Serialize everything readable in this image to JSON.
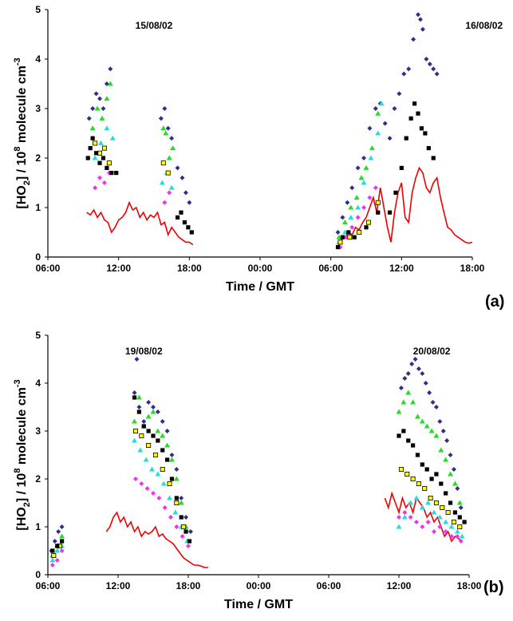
{
  "panels": [
    {
      "tag": "(a)",
      "xlabel": "Time / GMT",
      "ylabel_main": "[HO",
      "ylabel_sub": "2",
      "ylabel_mid": "] / 10",
      "ylabel_sup": "8",
      "ylabel_rest": " molecule cm",
      "ylabel_sup2": "-3",
      "dates": [
        {
          "text": "15/08/02",
          "x": 15
        },
        {
          "text": "16/08/02",
          "x": 43
        }
      ]
    },
    {
      "tag": "(b)",
      "xlabel": "Time / GMT",
      "ylabel_main": "[HO",
      "ylabel_sub": "2",
      "ylabel_mid": "] / 10",
      "ylabel_sup": "8",
      "ylabel_rest": " molecule cm",
      "ylabel_sup2": "-3",
      "dates": [
        {
          "text": "19/08/02",
          "x": 14.2
        },
        {
          "text": "20/08/02",
          "x": 38.8
        }
      ]
    }
  ],
  "chart_data": [
    {
      "type": "scatter",
      "title": "",
      "xlabel": "Time / GMT",
      "ylabel": "[HO2] / 10^8 molecule cm^-3",
      "xlim": [
        6,
        42
      ],
      "ylim": [
        0,
        5
      ],
      "x_ticks": [
        "06:00",
        "12:00",
        "18:00",
        "00:00",
        "06:00",
        "12:00",
        "18:00"
      ],
      "y_ticks": [
        "0",
        "1",
        "2",
        "3",
        "4",
        "5"
      ],
      "annotations": [
        "15/08/02",
        "16/08/02"
      ],
      "colors": {
        "blue": "#2e2e8c",
        "green": "#22dd22",
        "cyan": "#22dddd",
        "magenta": "#ee33ee",
        "yellow": "#ffff00",
        "black": "#000000",
        "red": "#ee0000"
      },
      "series": [
        {
          "color": "blue",
          "marker": "diamond",
          "x": [
            9.5,
            9.8,
            10.1,
            10.4,
            10.7,
            11.0,
            11.3,
            15.6,
            15.9,
            16.2,
            16.5,
            17.0,
            17.4,
            17.7,
            18.0,
            30.6,
            31.0,
            31.4,
            31.8,
            32.3,
            32.8,
            33.3,
            33.8,
            34.2,
            34.6,
            35.0,
            35.4,
            35.8,
            36.2,
            36.6,
            37.0,
            37.4,
            37.6,
            37.8,
            38.1,
            38.4,
            38.7,
            39.0
          ],
          "y": [
            2.8,
            3.0,
            3.3,
            3.2,
            3.0,
            3.5,
            3.8,
            2.8,
            3.0,
            2.6,
            2.4,
            1.8,
            1.6,
            1.3,
            1.1,
            0.5,
            0.8,
            1.1,
            1.4,
            1.8,
            2.0,
            2.6,
            3.0,
            3.1,
            2.7,
            2.4,
            3.0,
            3.3,
            3.7,
            3.8,
            4.4,
            4.9,
            4.8,
            4.6,
            4.0,
            3.9,
            3.8,
            3.7
          ]
        },
        {
          "color": "green",
          "marker": "triangle",
          "x": [
            9.8,
            10.2,
            10.6,
            11.0,
            11.3,
            15.8,
            16.0,
            16.3,
            16.6,
            30.7,
            31.2,
            31.7,
            32.2,
            32.6,
            33.0,
            33.5,
            34.0
          ],
          "y": [
            2.6,
            3.0,
            2.8,
            3.2,
            3.5,
            2.6,
            2.5,
            2.0,
            2.2,
            0.4,
            0.7,
            1.0,
            1.2,
            1.6,
            1.8,
            2.2,
            2.9
          ]
        },
        {
          "color": "cyan",
          "marker": "triangle",
          "x": [
            10.0,
            10.5,
            11.0,
            11.5,
            15.7,
            16.1,
            16.5,
            30.7,
            31.2,
            31.7,
            32.3,
            32.8,
            33.4,
            34.0,
            34.3
          ],
          "y": [
            2.0,
            2.3,
            2.6,
            2.4,
            1.5,
            1.7,
            1.4,
            0.3,
            0.5,
            0.8,
            1.0,
            1.5,
            2.0,
            2.5,
            3.1
          ]
        },
        {
          "color": "magenta",
          "marker": "diamond",
          "x": [
            10.0,
            10.4,
            10.8,
            11.2,
            15.9,
            16.3,
            30.8,
            31.3,
            31.8,
            32.3,
            32.8,
            33.3,
            33.8
          ],
          "y": [
            1.4,
            1.6,
            1.5,
            1.7,
            1.1,
            1.3,
            0.2,
            0.4,
            0.6,
            0.8,
            1.0,
            1.2,
            1.4
          ]
        },
        {
          "color": "yellow",
          "marker": "square",
          "x": [
            10.0,
            10.4,
            10.8,
            11.2,
            15.8,
            16.2,
            30.8,
            31.6,
            32.4,
            33.2,
            34.0
          ],
          "y": [
            2.3,
            2.1,
            2.2,
            1.9,
            1.9,
            1.7,
            0.3,
            0.4,
            0.5,
            0.7,
            1.1
          ]
        },
        {
          "color": "black",
          "marker": "square",
          "x": [
            9.4,
            9.6,
            9.8,
            10.1,
            10.4,
            10.7,
            11.0,
            11.4,
            11.8,
            17.0,
            17.3,
            17.6,
            17.9,
            18.2,
            30.6,
            31.0,
            31.5,
            32.0,
            33.0,
            34.0,
            35.0,
            35.5,
            36.0,
            36.4,
            36.8,
            37.1,
            37.4,
            37.7,
            38.0,
            38.3,
            38.7
          ],
          "y": [
            2.0,
            2.2,
            2.4,
            2.1,
            1.9,
            2.0,
            1.8,
            1.7,
            1.7,
            0.8,
            0.9,
            0.7,
            0.6,
            0.5,
            0.2,
            0.4,
            0.5,
            0.4,
            0.6,
            0.9,
            0.9,
            1.3,
            1.8,
            2.4,
            2.8,
            3.1,
            2.9,
            2.6,
            2.5,
            2.2,
            2.0
          ]
        }
      ],
      "line_series": [
        {
          "color": "red",
          "x": [
            9.3,
            9.6,
            9.9,
            10.2,
            10.5,
            10.8,
            11.1,
            11.4,
            11.7,
            12.0,
            12.3,
            12.6,
            12.9,
            13.2,
            13.5,
            13.8,
            14.1,
            14.4,
            14.7,
            15.0,
            15.3,
            15.6,
            15.9,
            16.2,
            16.5,
            16.8,
            17.1,
            17.4,
            17.7,
            18.0,
            18.3
          ],
          "y": [
            0.9,
            0.85,
            0.95,
            0.8,
            0.9,
            0.75,
            0.7,
            0.5,
            0.6,
            0.75,
            0.8,
            0.9,
            1.1,
            0.95,
            1.0,
            0.8,
            0.9,
            0.75,
            0.85,
            0.8,
            0.9,
            0.65,
            0.7,
            0.45,
            0.6,
            0.5,
            0.4,
            0.35,
            0.3,
            0.3,
            0.25
          ]
        },
        {
          "color": "red",
          "x": [
            30.6,
            30.9,
            31.2,
            31.5,
            31.8,
            32.1,
            32.4,
            32.7,
            33.0,
            33.3,
            33.6,
            33.9,
            34.2,
            34.5,
            34.8,
            35.1,
            35.4,
            35.7,
            36.0,
            36.3,
            36.6,
            36.9,
            37.2,
            37.5,
            37.8,
            38.1,
            38.4,
            38.7,
            39.0,
            39.3,
            39.6,
            39.9,
            40.2,
            40.5,
            40.8,
            41.1,
            41.4,
            41.7,
            42.0
          ],
          "y": [
            0.2,
            0.35,
            0.4,
            0.5,
            0.45,
            0.6,
            0.55,
            0.7,
            0.8,
            1.0,
            1.2,
            0.9,
            1.4,
            1.0,
            0.6,
            0.3,
            0.9,
            1.3,
            1.5,
            0.8,
            0.7,
            1.3,
            1.6,
            1.8,
            1.7,
            1.4,
            1.3,
            1.5,
            1.6,
            1.2,
            0.9,
            0.6,
            0.55,
            0.45,
            0.4,
            0.35,
            0.3,
            0.28,
            0.3
          ]
        }
      ]
    },
    {
      "type": "scatter",
      "title": "",
      "xlabel": "Time / GMT",
      "ylabel": "[HO2] / 10^8 molecule cm^-3",
      "xlim": [
        6,
        42
      ],
      "ylim": [
        0,
        5
      ],
      "x_ticks": [
        "06:00",
        "12:00",
        "18:00",
        "00:00",
        "06:00",
        "12:00",
        "18:00"
      ],
      "y_ticks": [
        "0",
        "1",
        "2",
        "3",
        "4",
        "5"
      ],
      "annotations": [
        "19/08/02",
        "20/08/02"
      ],
      "colors": {
        "blue": "#2e2e8c",
        "green": "#22dd22",
        "cyan": "#22dddd",
        "magenta": "#ee33ee",
        "yellow": "#ffff00",
        "black": "#000000",
        "red": "#ee0000"
      },
      "series": [
        {
          "color": "blue",
          "marker": "diamond",
          "x": [
            6.3,
            6.6,
            6.9,
            7.2,
            13.4,
            13.6,
            13.8,
            14.2,
            14.6,
            15.0,
            15.4,
            15.8,
            16.2,
            16.6,
            17.0,
            17.4,
            17.8,
            18.2,
            36.2,
            36.5,
            36.8,
            37.1,
            37.4,
            37.7,
            38.0,
            38.3,
            38.6,
            38.9,
            39.2,
            39.5,
            39.8,
            40.1,
            40.4,
            40.7,
            41.0,
            41.3
          ],
          "y": [
            0.5,
            0.7,
            0.9,
            1.0,
            3.8,
            4.5,
            3.5,
            3.2,
            3.6,
            3.5,
            3.4,
            3.2,
            3.0,
            2.5,
            2.2,
            1.6,
            1.2,
            0.9,
            3.9,
            4.1,
            4.2,
            4.4,
            4.5,
            4.3,
            4.2,
            4.0,
            3.8,
            3.6,
            3.5,
            3.2,
            3.0,
            2.8,
            2.5,
            2.2,
            1.8,
            1.4
          ]
        },
        {
          "color": "green",
          "marker": "triangle",
          "x": [
            6.4,
            6.8,
            7.2,
            13.4,
            13.8,
            14.2,
            14.6,
            15.0,
            15.4,
            15.8,
            16.2,
            16.6,
            17.0,
            17.4,
            17.8,
            36.0,
            36.4,
            36.8,
            37.2,
            37.6,
            38.0,
            38.4,
            38.8,
            39.2,
            39.6,
            40.0,
            40.4,
            40.8,
            41.2
          ],
          "y": [
            0.4,
            0.6,
            0.8,
            3.2,
            3.7,
            3.1,
            3.3,
            3.4,
            3.0,
            2.9,
            2.7,
            2.4,
            2.0,
            1.5,
            1.0,
            3.4,
            3.6,
            3.8,
            3.6,
            3.3,
            3.2,
            3.1,
            3.0,
            2.9,
            2.6,
            2.4,
            2.1,
            1.9,
            1.5
          ]
        },
        {
          "color": "cyan",
          "marker": "triangle",
          "x": [
            6.4,
            6.8,
            7.2,
            13.4,
            13.9,
            14.4,
            14.9,
            15.4,
            15.9,
            16.4,
            16.9,
            17.4,
            17.9,
            36.0,
            36.5,
            37.0,
            37.5,
            38.0,
            38.5,
            39.0,
            39.5,
            40.0,
            40.5,
            41.0,
            41.4
          ],
          "y": [
            0.3,
            0.5,
            0.6,
            2.8,
            2.6,
            2.4,
            2.2,
            2.1,
            1.9,
            1.6,
            1.3,
            1.0,
            0.7,
            1.0,
            1.2,
            1.5,
            1.6,
            1.4,
            1.5,
            1.3,
            1.2,
            1.1,
            1.0,
            0.9,
            0.8
          ]
        },
        {
          "color": "magenta",
          "marker": "diamond",
          "x": [
            6.4,
            6.8,
            7.2,
            13.5,
            14.0,
            14.5,
            15.0,
            15.5,
            16.0,
            16.5,
            17.0,
            17.5,
            18.0,
            36.0,
            36.5,
            37.0,
            37.5,
            38.0,
            38.5,
            39.0,
            39.5,
            40.0,
            40.5,
            41.0,
            41.3
          ],
          "y": [
            0.2,
            0.3,
            0.5,
            2.0,
            1.9,
            1.8,
            1.7,
            1.6,
            1.4,
            1.2,
            1.0,
            0.8,
            0.6,
            1.2,
            1.3,
            1.2,
            1.1,
            1.0,
            1.1,
            0.9,
            1.0,
            0.9,
            0.8,
            0.8,
            0.7
          ]
        },
        {
          "color": "yellow",
          "marker": "square",
          "x": [
            6.5,
            7.0,
            13.5,
            14.0,
            14.6,
            15.2,
            15.8,
            16.4,
            17.0,
            17.6,
            36.2,
            36.7,
            37.2,
            37.7,
            38.2,
            38.7,
            39.2,
            39.7,
            40.2,
            40.7,
            41.2
          ],
          "y": [
            0.4,
            0.6,
            3.0,
            2.9,
            2.7,
            2.5,
            2.2,
            1.9,
            1.5,
            1.0,
            2.2,
            2.1,
            2.0,
            1.9,
            1.8,
            1.6,
            1.5,
            1.4,
            1.3,
            1.1,
            1.0
          ]
        },
        {
          "color": "black",
          "marker": "square",
          "x": [
            6.4,
            6.8,
            7.2,
            13.4,
            13.8,
            14.2,
            14.6,
            15.0,
            15.4,
            15.8,
            16.2,
            16.6,
            17.0,
            17.4,
            17.8,
            18.1,
            36.0,
            36.4,
            36.8,
            37.2,
            37.6,
            38.0,
            38.4,
            38.8,
            39.2,
            39.6,
            40.0,
            40.4,
            40.8,
            41.2,
            41.6
          ],
          "y": [
            0.5,
            0.6,
            0.7,
            3.7,
            3.4,
            3.1,
            3.0,
            2.9,
            2.8,
            2.6,
            2.4,
            2.0,
            1.6,
            1.2,
            0.9,
            0.7,
            2.9,
            3.0,
            2.8,
            2.7,
            2.5,
            2.3,
            2.2,
            2.0,
            2.1,
            1.9,
            1.7,
            1.5,
            1.3,
            1.2,
            1.1
          ]
        }
      ],
      "line_series": [
        {
          "color": "red",
          "x": [
            11.0,
            11.3,
            11.6,
            11.9,
            12.2,
            12.5,
            12.8,
            13.1,
            13.4,
            13.7,
            14.0,
            14.3,
            14.6,
            14.9,
            15.2,
            15.5,
            15.8,
            16.1,
            16.4,
            16.7,
            17.0,
            17.3,
            17.6,
            17.9,
            18.2,
            18.5,
            18.8,
            19.1,
            19.4,
            19.7
          ],
          "y": [
            0.9,
            1.0,
            1.2,
            1.3,
            1.1,
            1.2,
            1.0,
            1.1,
            0.9,
            1.0,
            0.8,
            0.9,
            0.85,
            0.9,
            1.0,
            0.8,
            0.85,
            0.75,
            0.7,
            0.65,
            0.55,
            0.45,
            0.35,
            0.3,
            0.25,
            0.2,
            0.2,
            0.18,
            0.15,
            0.15
          ]
        },
        {
          "color": "red",
          "x": [
            34.8,
            35.1,
            35.4,
            35.7,
            36.0,
            36.3,
            36.6,
            36.9,
            37.2,
            37.5,
            37.8,
            38.1,
            38.4,
            38.7,
            39.0,
            39.3,
            39.6,
            39.9,
            40.2,
            40.5,
            40.8,
            41.1,
            41.4
          ],
          "y": [
            1.6,
            1.4,
            1.7,
            1.5,
            1.3,
            1.6,
            1.4,
            1.5,
            1.3,
            1.6,
            1.5,
            1.4,
            1.2,
            1.3,
            1.1,
            1.2,
            1.0,
            0.8,
            0.9,
            0.7,
            0.8,
            0.75,
            0.7
          ]
        }
      ]
    }
  ]
}
